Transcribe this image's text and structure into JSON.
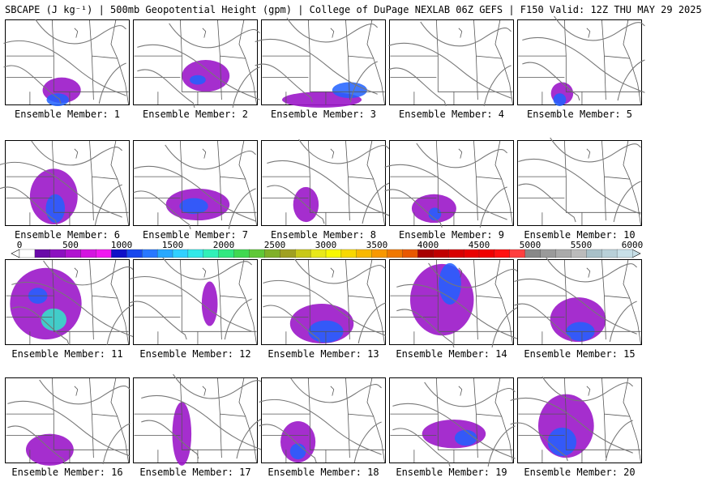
{
  "title": "SBCAPE (J kg⁻¹) | 500mb Geopotential Height (gpm) | College of DuPage NEXLAB 06Z GEFS | F150 Valid: 12Z THU MAY 29 2025",
  "colorbar": {
    "tick_labels": [
      "0",
      "500",
      "1000",
      "1500",
      "2000",
      "2500",
      "3000",
      "3500",
      "4000",
      "4500",
      "5000",
      "5500",
      "6000"
    ],
    "colors": [
      "#ffffff",
      "#6a0aa8",
      "#8c10c0",
      "#b012d0",
      "#d414e0",
      "#f018f0",
      "#1010c8",
      "#1848ee",
      "#2878ff",
      "#28a8ff",
      "#30d0ff",
      "#30e8e8",
      "#30f0b8",
      "#30e880",
      "#40d850",
      "#60c838",
      "#80b028",
      "#a0a020",
      "#c8c818",
      "#e8e818",
      "#f8f800",
      "#f8d800",
      "#f8b800",
      "#f89800",
      "#f07800",
      "#e85800",
      "#a80000",
      "#c00000",
      "#d80000",
      "#e80000",
      "#f00000",
      "#ff1010",
      "#ff4040",
      "#888888",
      "#9a9a9a",
      "#aaaaaa",
      "#bbbbbb",
      "#a8c0c8",
      "#b8d0d8",
      "#c8e0e8"
    ]
  },
  "panels": [
    {
      "label": "Ensemble Member: 1"
    },
    {
      "label": "Ensemble Member: 2"
    },
    {
      "label": "Ensemble Member: 3"
    },
    {
      "label": "Ensemble Member: 4"
    },
    {
      "label": "Ensemble Member: 5"
    },
    {
      "label": "Ensemble Member: 6"
    },
    {
      "label": "Ensemble Member: 7"
    },
    {
      "label": "Ensemble Member: 8"
    },
    {
      "label": "Ensemble Member: 9"
    },
    {
      "label": "Ensemble Member: 10"
    },
    {
      "label": "Ensemble Member: 11"
    },
    {
      "label": "Ensemble Member: 12"
    },
    {
      "label": "Ensemble Member: 13"
    },
    {
      "label": "Ensemble Member: 14"
    },
    {
      "label": "Ensemble Member: 15"
    },
    {
      "label": "Ensemble Member: 16"
    },
    {
      "label": "Ensemble Member: 17"
    },
    {
      "label": "Ensemble Member: 18"
    },
    {
      "label": "Ensemble Member: 19"
    },
    {
      "label": "Ensemble Member: 20"
    }
  ]
}
